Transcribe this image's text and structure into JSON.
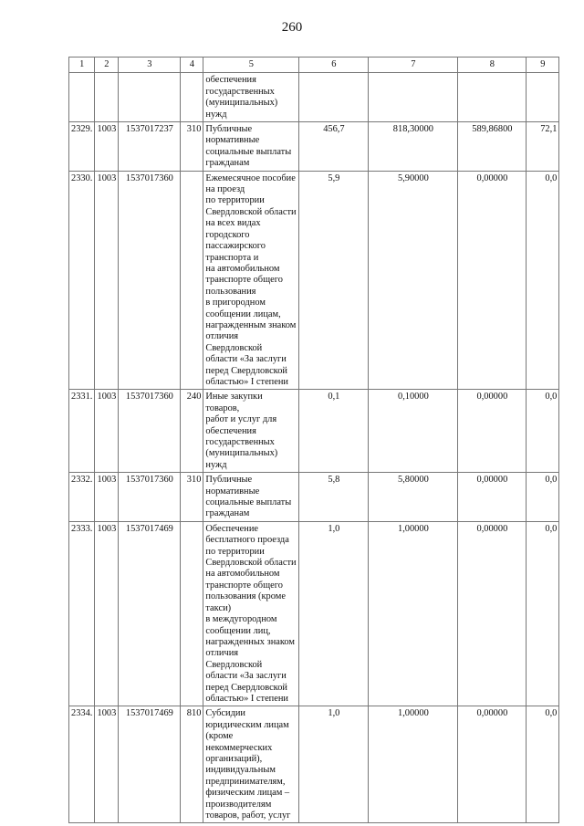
{
  "page_number": "260",
  "columns": [
    "1",
    "2",
    "3",
    "4",
    "5",
    "6",
    "7",
    "8",
    "9"
  ],
  "rows": [
    {
      "n": "",
      "sec": "",
      "csr": "",
      "vr": "",
      "name": "обеспечения\nгосударственных\n(муниципальных) нужд",
      "v6": "",
      "v7": "",
      "v8": "",
      "v9": ""
    },
    {
      "n": "2329.",
      "sec": "1003",
      "csr": "1537017237",
      "vr": "310",
      "name": "Публичные\nнормативные\nсоциальные выплаты\nгражданам",
      "v6": "456,7",
      "v7": "818,30000",
      "v8": "589,86800",
      "v9": "72,1"
    },
    {
      "n": "2330.",
      "sec": "1003",
      "csr": "1537017360",
      "vr": "",
      "name": "Ежемесячное пособие\nна проезд\nпо территории\nСвердловской области\nна всех видах\nгородского\nпассажирского\nтранспорта и\nна автомобильном\nтранспорте общего\nпользования\nв пригородном\nсообщении лицам,\nнагражденным знаком\nотличия Свердловской\nобласти «За заслуги\nперед Свердловской\nобластью» I степени",
      "v6": "5,9",
      "v7": "5,90000",
      "v8": "0,00000",
      "v9": "0,0"
    },
    {
      "n": "2331.",
      "sec": "1003",
      "csr": "1537017360",
      "vr": "240",
      "name": "Иные закупки товаров,\nработ и услуг для\nобеспечения\nгосударственных\n(муниципальных) нужд",
      "v6": "0,1",
      "v7": "0,10000",
      "v8": "0,00000",
      "v9": "0,0"
    },
    {
      "n": "2332.",
      "sec": "1003",
      "csr": "1537017360",
      "vr": "310",
      "name": "Публичные\nнормативные\nсоциальные выплаты\nгражданам",
      "v6": "5,8",
      "v7": "5,80000",
      "v8": "0,00000",
      "v9": "0,0"
    },
    {
      "n": "2333.",
      "sec": "1003",
      "csr": "1537017469",
      "vr": "",
      "name": "Обеспечение\nбесплатного проезда\nпо территории\nСвердловской области\nна автомобильном\nтранспорте общего\nпользования (кроме\nтакси)\nв междугородном\nсообщении лиц,\nнагражденных знаком\nотличия Свердловской\nобласти «За заслуги\nперед Свердловской\nобластью» I степени",
      "v6": "1,0",
      "v7": "1,00000",
      "v8": "0,00000",
      "v9": "0,0"
    },
    {
      "n": "2334.",
      "sec": "1003",
      "csr": "1537017469",
      "vr": "810",
      "name": "Субсидии\nюридическим лицам\n(кроме\nнекоммерческих\nорганизаций),\nиндивидуальным\nпредпринимателям,\nфизическим лицам –\nпроизводителям\nтоваров, работ, услуг",
      "v6": "1,0",
      "v7": "1,00000",
      "v8": "0,00000",
      "v9": "0,0"
    }
  ]
}
